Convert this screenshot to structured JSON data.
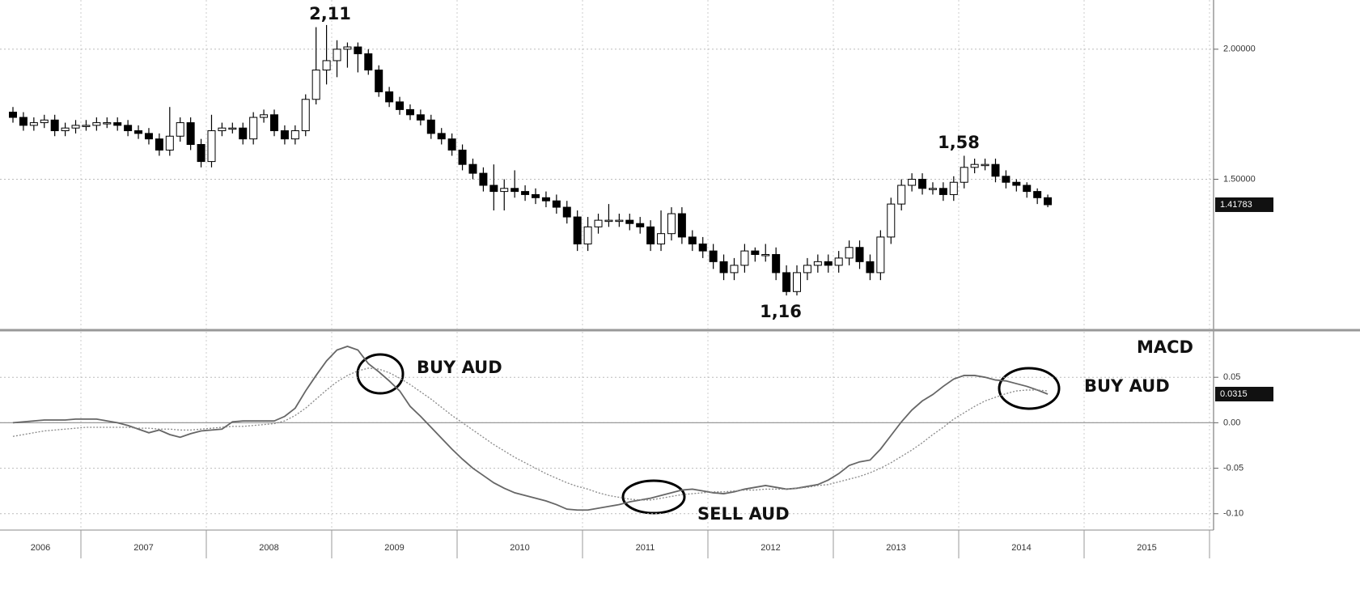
{
  "chart_data": [
    {
      "type": "candlestick",
      "log": true,
      "grid": true,
      "up_color": "#ffffff",
      "down_color": "#000000",
      "ylim": [
        1.08,
        2.23
      ],
      "yticks": [
        {
          "value": 2,
          "label": "2.00000"
        },
        {
          "value": 1.5,
          "label": "1.50000"
        }
      ],
      "annotations": [
        "2,11",
        "1,58",
        "1,16"
      ],
      "open": [
        1.74,
        1.72,
        1.69,
        1.7,
        1.71,
        1.67,
        1.68,
        1.69,
        1.69,
        1.7,
        1.7,
        1.69,
        1.67,
        1.66,
        1.64,
        1.6,
        1.65,
        1.7,
        1.62,
        1.56,
        1.67,
        1.68,
        1.68,
        1.64,
        1.72,
        1.73,
        1.67,
        1.64,
        1.67,
        1.79,
        1.91,
        1.95,
        2.0,
        2.01,
        1.98,
        1.91,
        1.82,
        1.78,
        1.75,
        1.73,
        1.71,
        1.66,
        1.64,
        1.6,
        1.55,
        1.52,
        1.48,
        1.46,
        1.47,
        1.46,
        1.45,
        1.44,
        1.43,
        1.41,
        1.38,
        1.3,
        1.35,
        1.37,
        1.37,
        1.37,
        1.36,
        1.35,
        1.3,
        1.33,
        1.39,
        1.32,
        1.3,
        1.28,
        1.25,
        1.22,
        1.24,
        1.28,
        1.27,
        1.27,
        1.22,
        1.17,
        1.22,
        1.24,
        1.25,
        1.24,
        1.26,
        1.29,
        1.25,
        1.22,
        1.32,
        1.42,
        1.48,
        1.5,
        1.47,
        1.47,
        1.45,
        1.49,
        1.54,
        1.55,
        1.55,
        1.51,
        1.49,
        1.48,
        1.46,
        1.44
      ],
      "high": [
        1.76,
        1.74,
        1.72,
        1.73,
        1.73,
        1.7,
        1.71,
        1.71,
        1.72,
        1.72,
        1.72,
        1.71,
        1.69,
        1.68,
        1.66,
        1.76,
        1.72,
        1.72,
        1.64,
        1.73,
        1.7,
        1.7,
        1.7,
        1.74,
        1.75,
        1.75,
        1.69,
        1.69,
        1.81,
        2.1,
        2.11,
        2.04,
        2.03,
        2.03,
        2.0,
        1.93,
        1.84,
        1.8,
        1.77,
        1.75,
        1.73,
        1.68,
        1.66,
        1.62,
        1.57,
        1.54,
        1.55,
        1.5,
        1.53,
        1.48,
        1.47,
        1.46,
        1.45,
        1.43,
        1.4,
        1.38,
        1.39,
        1.42,
        1.39,
        1.39,
        1.38,
        1.37,
        1.4,
        1.41,
        1.41,
        1.34,
        1.32,
        1.3,
        1.27,
        1.26,
        1.3,
        1.29,
        1.3,
        1.29,
        1.24,
        1.24,
        1.26,
        1.27,
        1.27,
        1.28,
        1.31,
        1.31,
        1.27,
        1.34,
        1.44,
        1.5,
        1.52,
        1.52,
        1.49,
        1.49,
        1.51,
        1.58,
        1.57,
        1.57,
        1.57,
        1.53,
        1.5,
        1.49,
        1.47,
        1.45
      ],
      "low": [
        1.7,
        1.67,
        1.67,
        1.68,
        1.65,
        1.65,
        1.66,
        1.67,
        1.67,
        1.68,
        1.67,
        1.65,
        1.64,
        1.62,
        1.58,
        1.58,
        1.63,
        1.6,
        1.54,
        1.54,
        1.65,
        1.66,
        1.62,
        1.62,
        1.7,
        1.65,
        1.62,
        1.62,
        1.65,
        1.77,
        1.85,
        1.88,
        1.92,
        1.9,
        1.89,
        1.8,
        1.76,
        1.73,
        1.71,
        1.69,
        1.64,
        1.62,
        1.58,
        1.53,
        1.5,
        1.46,
        1.4,
        1.4,
        1.44,
        1.43,
        1.42,
        1.41,
        1.39,
        1.36,
        1.28,
        1.28,
        1.33,
        1.35,
        1.35,
        1.34,
        1.33,
        1.28,
        1.28,
        1.31,
        1.3,
        1.28,
        1.26,
        1.23,
        1.2,
        1.2,
        1.22,
        1.25,
        1.25,
        1.2,
        1.16,
        1.16,
        1.2,
        1.22,
        1.22,
        1.22,
        1.24,
        1.23,
        1.2,
        1.2,
        1.3,
        1.4,
        1.46,
        1.45,
        1.45,
        1.43,
        1.43,
        1.47,
        1.52,
        1.53,
        1.49,
        1.47,
        1.46,
        1.44,
        1.42,
        1.41
      ],
      "close": [
        1.72,
        1.69,
        1.7,
        1.71,
        1.67,
        1.68,
        1.69,
        1.69,
        1.7,
        1.7,
        1.69,
        1.67,
        1.66,
        1.64,
        1.6,
        1.65,
        1.7,
        1.62,
        1.56,
        1.67,
        1.68,
        1.68,
        1.64,
        1.72,
        1.73,
        1.67,
        1.64,
        1.67,
        1.79,
        1.91,
        1.95,
        2.0,
        2.01,
        1.98,
        1.91,
        1.82,
        1.78,
        1.75,
        1.73,
        1.71,
        1.66,
        1.64,
        1.6,
        1.55,
        1.52,
        1.48,
        1.46,
        1.47,
        1.46,
        1.45,
        1.44,
        1.43,
        1.41,
        1.38,
        1.3,
        1.35,
        1.37,
        1.37,
        1.37,
        1.36,
        1.35,
        1.3,
        1.33,
        1.39,
        1.32,
        1.3,
        1.28,
        1.25,
        1.22,
        1.24,
        1.28,
        1.27,
        1.27,
        1.22,
        1.17,
        1.22,
        1.24,
        1.25,
        1.24,
        1.26,
        1.29,
        1.25,
        1.22,
        1.32,
        1.42,
        1.48,
        1.5,
        1.47,
        1.47,
        1.45,
        1.49,
        1.54,
        1.55,
        1.55,
        1.51,
        1.49,
        1.48,
        1.46,
        1.44,
        1.41783
      ]
    },
    {
      "type": "line",
      "title": "MACD",
      "grid": true,
      "zero_line": true,
      "ylim": [
        -0.118,
        0.1
      ],
      "yticks": [
        0.05,
        {
          "value": 0,
          "label": "0.00"
        },
        -0.05,
        {
          "value": -0.1,
          "label": "-0.10"
        }
      ],
      "annotations": [
        "BUY AUD",
        "SELL AUD",
        "BUY AUD"
      ],
      "xtick_labels": [
        "2006",
        "2007",
        "2008",
        "2009",
        "2010",
        "2011",
        "2012",
        "2013",
        "2014",
        "2015"
      ],
      "series": [
        {
          "color": "#666666",
          "style": "solid",
          "values": [
            0.0,
            0.001,
            0.002,
            0.003,
            0.003,
            0.003,
            0.004,
            0.004,
            0.004,
            0.002,
            0.0,
            -0.003,
            -0.007,
            -0.011,
            -0.008,
            -0.013,
            -0.016,
            -0.012,
            -0.009,
            -0.008,
            -0.007,
            0.001,
            0.002,
            0.002,
            0.002,
            0.002,
            0.007,
            0.016,
            0.035,
            0.052,
            0.068,
            0.08,
            0.084,
            0.08,
            0.065,
            0.056,
            0.046,
            0.035,
            0.018,
            0.007,
            -0.005,
            -0.017,
            -0.029,
            -0.04,
            -0.05,
            -0.058,
            -0.066,
            -0.072,
            -0.077,
            -0.08,
            -0.083,
            -0.086,
            -0.09,
            -0.095,
            -0.096,
            -0.096,
            -0.094,
            -0.092,
            -0.09,
            -0.087,
            -0.085,
            -0.083,
            -0.08,
            -0.077,
            -0.074,
            -0.073,
            -0.075,
            -0.077,
            -0.078,
            -0.076,
            -0.073,
            -0.071,
            -0.069,
            -0.071,
            -0.073,
            -0.072,
            -0.07,
            -0.068,
            -0.063,
            -0.056,
            -0.047,
            -0.043,
            -0.041,
            -0.029,
            -0.014,
            0.001,
            0.014,
            0.024,
            0.031,
            0.04,
            0.048,
            0.052,
            0.052,
            0.05,
            0.047,
            0.046,
            0.043,
            0.04,
            0.036,
            0.0315
          ]
        },
        {
          "color": "#888888",
          "style": "dotted",
          "values": [
            -0.015,
            -0.013,
            -0.011,
            -0.009,
            -0.008,
            -0.007,
            -0.006,
            -0.005,
            -0.005,
            -0.005,
            -0.005,
            -0.005,
            -0.006,
            -0.006,
            -0.007,
            -0.007,
            -0.008,
            -0.008,
            -0.007,
            -0.006,
            -0.005,
            -0.004,
            -0.004,
            -0.003,
            -0.002,
            -0.001,
            0.002,
            0.008,
            0.016,
            0.026,
            0.036,
            0.045,
            0.052,
            0.057,
            0.06,
            0.059,
            0.055,
            0.049,
            0.042,
            0.034,
            0.026,
            0.017,
            0.008,
            0.0,
            -0.008,
            -0.016,
            -0.024,
            -0.031,
            -0.038,
            -0.044,
            -0.05,
            -0.056,
            -0.061,
            -0.066,
            -0.07,
            -0.073,
            -0.077,
            -0.08,
            -0.082,
            -0.084,
            -0.085,
            -0.085,
            -0.083,
            -0.081,
            -0.079,
            -0.078,
            -0.077,
            -0.076,
            -0.076,
            -0.075,
            -0.074,
            -0.074,
            -0.073,
            -0.073,
            -0.073,
            -0.072,
            -0.071,
            -0.069,
            -0.068,
            -0.065,
            -0.062,
            -0.059,
            -0.055,
            -0.05,
            -0.044,
            -0.037,
            -0.03,
            -0.022,
            -0.013,
            -0.005,
            0.004,
            0.011,
            0.018,
            0.024,
            0.028,
            0.032,
            0.035,
            0.036,
            0.036,
            0.035
          ]
        }
      ]
    }
  ]
}
